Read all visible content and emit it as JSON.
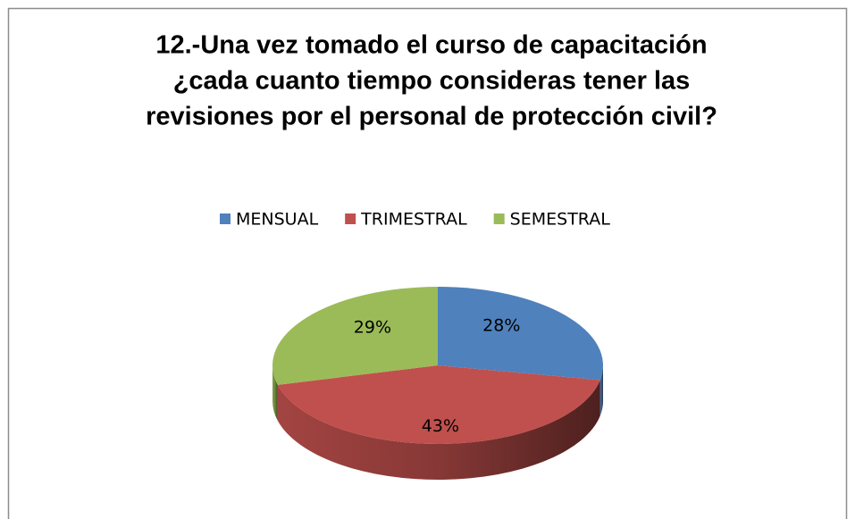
{
  "chart_data": {
    "type": "pie3d",
    "title": [
      "12.-Una vez tomado el curso de capacitación",
      "¿cada cuanto tiempo consideras tener las",
      "revisiones por el personal de protección civil?"
    ],
    "categories": [
      "MENSUAL",
      "TRIMESTRAL",
      "SEMESTRAL"
    ],
    "values": [
      28,
      43,
      29
    ],
    "value_labels": [
      "28%",
      "43%",
      "29%"
    ],
    "colors": [
      "#4f81bd",
      "#c0504d",
      "#9bbb59"
    ],
    "legend": "top"
  }
}
